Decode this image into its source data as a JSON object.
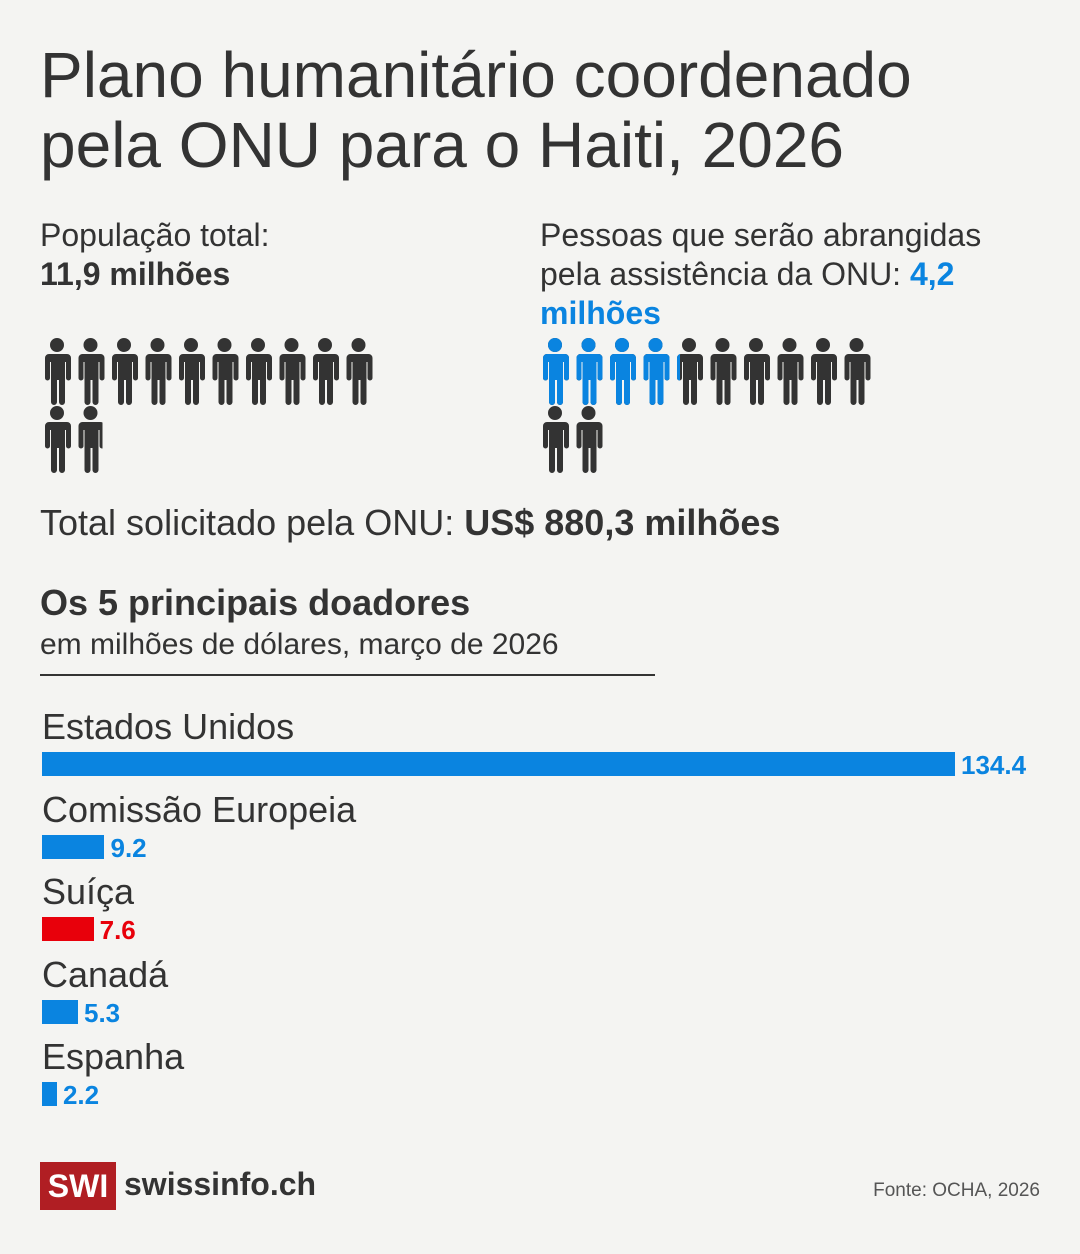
{
  "title_line1": "Plano humanitário coordenado",
  "title_line2": "pela ONU para o Haiti, 2026",
  "population": {
    "label": "População total:",
    "value": "11,9 milhões",
    "amount": 11.9,
    "icons": 12
  },
  "reach": {
    "label": "Pessoas que serão abrangidas pela assistência da ONU:",
    "value": "4,2 milhões",
    "amount": 4.2,
    "icons": 12
  },
  "total": {
    "label": "Total solicitado pela ONU:",
    "value": "US$ 880,3 milhões"
  },
  "colors": {
    "dark": "#333333",
    "blue": "#0a84e0",
    "red": "#e8000b",
    "brand": "#b01e23"
  },
  "chart_data": {
    "type": "bar",
    "title": "Os 5 principais doadores",
    "subtitle": "em milhões de dólares, março de 2026",
    "categories": [
      "Estados Unidos",
      "Comissão Europeia",
      "Suíça",
      "Canadá",
      "Espanha"
    ],
    "values": [
      134.4,
      9.2,
      7.6,
      5.3,
      2.2
    ],
    "labels": [
      "134.4",
      "9.2",
      "7.6",
      "5.3",
      "2.2"
    ],
    "bar_colors": [
      "#0a84e0",
      "#0a84e0",
      "#e8000b",
      "#0a84e0",
      "#0a84e0"
    ],
    "orientation": "horizontal"
  },
  "footer": {
    "logo": "SWI",
    "site": "swissinfo.ch",
    "source": "Fonte: OCHA, 2026"
  }
}
